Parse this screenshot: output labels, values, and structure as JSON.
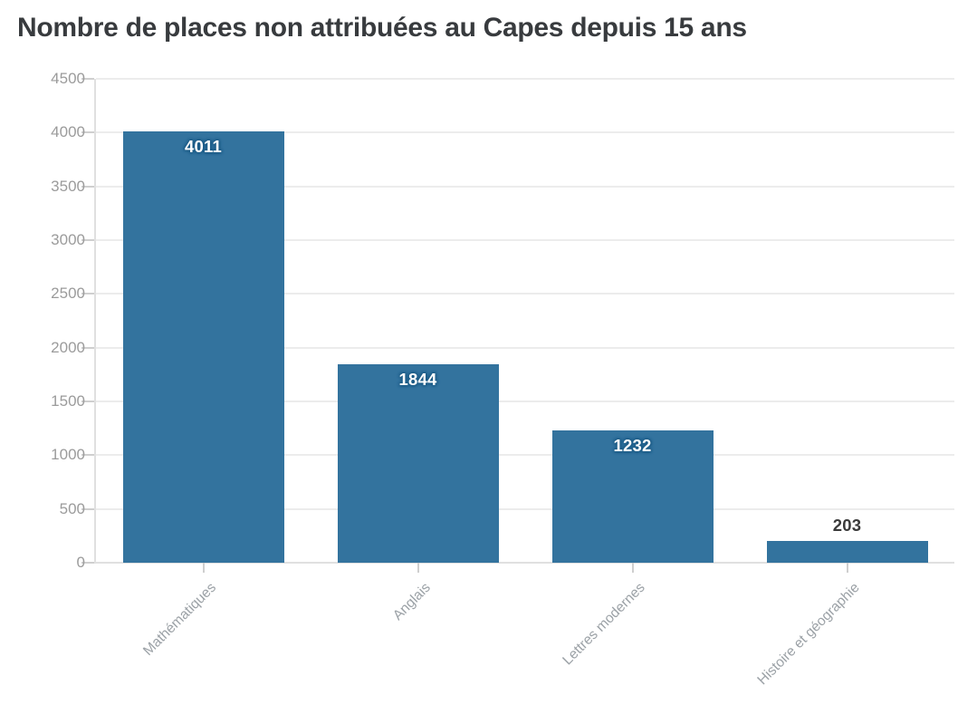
{
  "chart_data": {
    "type": "bar",
    "title": "Nombre de places non attribuées au Capes depuis 15 ans",
    "categories": [
      "Mathématiques",
      "Anglais",
      "Lettres modernes",
      "Histoire et géographie"
    ],
    "values": [
      4011,
      1844,
      1232,
      203
    ],
    "value_labels": [
      "4011",
      "1844",
      "1232",
      "203"
    ],
    "value_label_placement": [
      "inside",
      "inside",
      "inside",
      "outside"
    ],
    "xlabel": "",
    "ylabel": "",
    "ylim": [
      0,
      4500
    ],
    "yticks": [
      0,
      500,
      1000,
      1500,
      2000,
      2500,
      3000,
      3500,
      4000,
      4500
    ],
    "grid": true,
    "legend": null,
    "bar_color": "#33739e"
  },
  "colors": {
    "background": "#ffffff",
    "bar": "#33739e",
    "title_text": "#383b3e",
    "y_tick_text": "#9b9b9b",
    "x_label_text": "#9ba1a6",
    "gridline": "#ececec",
    "axis_line": "#e0e0e0",
    "tick_mark": "#cfcfcf",
    "value_label_inside": "#ffffff",
    "value_label_outside": "#3a3a3a",
    "value_label_halo": "#1b5a85"
  }
}
